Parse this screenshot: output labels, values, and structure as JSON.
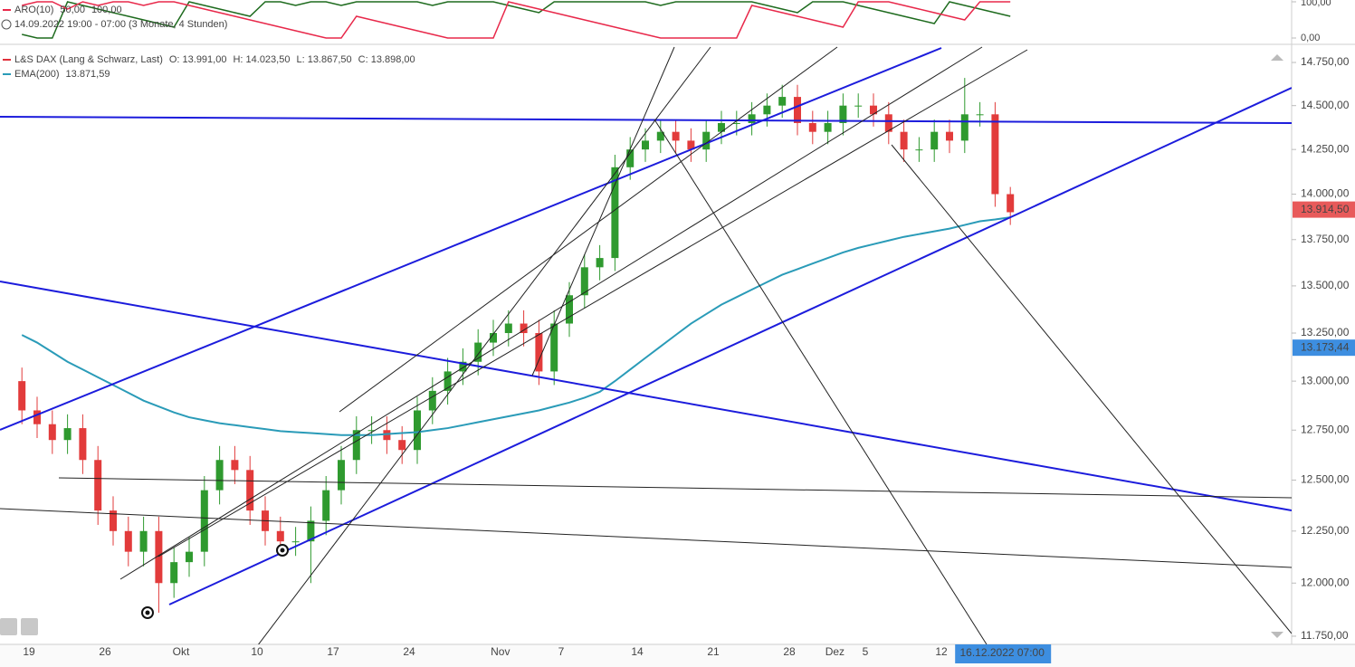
{
  "chart_data": [
    {
      "type": "line",
      "title": "ARO(10)",
      "legend_values": [
        "50,00",
        "100,00"
      ],
      "subtitle": "14.09.2022 19:00 - 07:00  (3 Monate, 4 Stunden)",
      "ylim": [
        0,
        100
      ],
      "yticks": [
        {
          "value": 100,
          "label": "100,00"
        },
        {
          "value": 0,
          "label": "0,00"
        }
      ],
      "series": [
        {
          "color": "#1e6b1e",
          "values": [
            10,
            0,
            0,
            100,
            90,
            80,
            70,
            60,
            50,
            40,
            30,
            100,
            90,
            80,
            70,
            60,
            100,
            100,
            90,
            100,
            100,
            90,
            100,
            100,
            100,
            100,
            100,
            90,
            100,
            100,
            100,
            100,
            90,
            80,
            70,
            100,
            100,
            100,
            100,
            100,
            100,
            100,
            90,
            100,
            100,
            100,
            100,
            100,
            100,
            90,
            80,
            70,
            100,
            100,
            100,
            90,
            80,
            70,
            60,
            50,
            40,
            100,
            90,
            80,
            70,
            60
          ]
        },
        {
          "color": "#e8284a",
          "values": [
            90,
            100,
            100,
            80,
            100,
            90,
            100,
            100,
            90,
            100,
            100,
            90,
            80,
            70,
            60,
            50,
            40,
            30,
            20,
            10,
            0,
            0,
            60,
            50,
            40,
            30,
            20,
            10,
            0,
            0,
            0,
            0,
            100,
            90,
            80,
            70,
            60,
            50,
            40,
            30,
            20,
            10,
            0,
            0,
            0,
            0,
            0,
            0,
            90,
            80,
            70,
            60,
            50,
            40,
            30,
            100,
            100,
            100,
            90,
            80,
            70,
            60,
            50,
            100,
            100,
            100
          ]
        }
      ]
    },
    {
      "type": "candlestick",
      "log_scale": true,
      "legend_values": [
        "O: 13.991,00",
        "H: 14.023,50",
        "L: 13.867,50",
        "C: 13.898,00"
      ],
      "cursor_label": "16.12.2022 07:00",
      "up_color": "#2f9a2f",
      "down_color": "#e23b3b",
      "categories": [
        null,
        "19",
        null,
        null,
        null,
        null,
        "26",
        null,
        null,
        null,
        null,
        "Okt",
        null,
        null,
        null,
        null,
        "10",
        null,
        null,
        null,
        null,
        "17",
        null,
        null,
        null,
        null,
        "24",
        null,
        null,
        null,
        null,
        null,
        "Nov",
        null,
        null,
        null,
        "7",
        null,
        null,
        null,
        null,
        "14",
        null,
        null,
        null,
        null,
        "21",
        null,
        null,
        null,
        null,
        "28",
        null,
        null,
        "Dez",
        null,
        "5",
        null,
        null,
        null,
        null,
        "12",
        null,
        null,
        null,
        null
      ],
      "ylim": [
        11712,
        14851
      ],
      "yticks": [
        {
          "value": 14750,
          "label": "14.750,00"
        },
        {
          "value": 14500,
          "label": "14.500,00"
        },
        {
          "value": 14250,
          "label": "14.250,00"
        },
        {
          "value": 14000,
          "label": "14.000,00"
        },
        {
          "value": 13750,
          "label": "13.750,00"
        },
        {
          "value": 13500,
          "label": "13.500,00"
        },
        {
          "value": 13250,
          "label": "13.250,00"
        },
        {
          "value": 13000,
          "label": "13.000,00"
        },
        {
          "value": 12750,
          "label": "12.750,00"
        },
        {
          "value": 12500,
          "label": "12.500,00"
        },
        {
          "value": 12250,
          "label": "12.250,00"
        },
        {
          "value": 12000,
          "label": "12.000,00"
        },
        {
          "value": 11750,
          "label": "11.750,00"
        }
      ],
      "price_tags": [
        {
          "value": 13914.5,
          "label": "13.914,50",
          "color": "#e85a5a"
        },
        {
          "value": 13173.44,
          "label": "13.173,44",
          "color": "#3d8ee0"
        }
      ],
      "series": [
        {
          "name": "L&S DAX (Lang & Schwarz, Last)",
          "color": "#e0303a",
          "open": [
            13000,
            12850,
            12780,
            12700,
            12760,
            12600,
            12350,
            12250,
            12150,
            12250,
            12000,
            12100,
            12150,
            12450,
            12600,
            12550,
            12350,
            12250,
            12200,
            12200,
            12300,
            12450,
            12600,
            12750,
            12750,
            12700,
            12650,
            12850,
            12950,
            13050,
            13100,
            13200,
            13250,
            13300,
            13250,
            13050,
            13300,
            13450,
            13600,
            13650,
            14150,
            14250,
            14300,
            14350,
            14300,
            14250,
            14350,
            14400,
            14400,
            14450,
            14500,
            14550,
            14400,
            14350,
            14400,
            14500,
            14500,
            14450,
            14350,
            14250,
            14250,
            14350,
            14300,
            14450,
            14450,
            14000
          ],
          "high": [
            13070,
            12920,
            12850,
            12830,
            12830,
            12670,
            12420,
            12320,
            12320,
            12320,
            12170,
            12220,
            12520,
            12670,
            12670,
            12620,
            12420,
            12320,
            12270,
            12370,
            12520,
            12670,
            12820,
            12820,
            12820,
            12770,
            12920,
            13020,
            13120,
            13170,
            13270,
            13320,
            13370,
            13370,
            13320,
            13370,
            13520,
            13670,
            13720,
            14220,
            14320,
            14370,
            14420,
            14420,
            14370,
            14420,
            14470,
            14470,
            14520,
            14570,
            14620,
            14620,
            14470,
            14470,
            14570,
            14570,
            14570,
            14520,
            14420,
            14320,
            14420,
            14420,
            14660,
            14520,
            14520,
            14040
          ],
          "low": [
            12780,
            12710,
            12630,
            12630,
            12530,
            12280,
            12180,
            12080,
            12080,
            11860,
            11930,
            12030,
            12080,
            12380,
            12480,
            12280,
            12180,
            12130,
            12130,
            12000,
            12230,
            12380,
            12530,
            12680,
            12630,
            12580,
            12580,
            12780,
            12880,
            12980,
            13030,
            13130,
            13180,
            13180,
            12980,
            12980,
            13230,
            13380,
            13530,
            13580,
            14080,
            14180,
            14230,
            14230,
            14180,
            14180,
            14280,
            14330,
            14330,
            14380,
            14430,
            14330,
            14280,
            14280,
            14330,
            14430,
            14380,
            14280,
            14180,
            14180,
            14180,
            14230,
            14230,
            14380,
            13930,
            13830
          ],
          "close": [
            12850,
            12780,
            12700,
            12760,
            12600,
            12350,
            12250,
            12150,
            12250,
            12000,
            12100,
            12150,
            12450,
            12600,
            12550,
            12350,
            12250,
            12200,
            12200,
            12300,
            12450,
            12600,
            12750,
            12750,
            12700,
            12650,
            12850,
            12950,
            13050,
            13100,
            13200,
            13250,
            13300,
            13250,
            13050,
            13300,
            13450,
            13600,
            13650,
            14150,
            14250,
            14300,
            14350,
            14300,
            14250,
            14350,
            14400,
            14400,
            14450,
            14500,
            14550,
            14400,
            14350,
            14400,
            14500,
            14500,
            14450,
            14350,
            14250,
            14250,
            14350,
            14300,
            14450,
            14450,
            14000,
            13900
          ]
        },
        {
          "name": "EMA(200)",
          "color": "#2a9bb8",
          "legend_value": "13.871,59",
          "values": [
            13240,
            13200,
            13150,
            13100,
            13060,
            13020,
            12980,
            12940,
            12900,
            12870,
            12840,
            12815,
            12800,
            12785,
            12775,
            12765,
            12755,
            12745,
            12740,
            12735,
            12730,
            12725,
            12725,
            12725,
            12730,
            12735,
            12740,
            12750,
            12760,
            12775,
            12790,
            12805,
            12820,
            12835,
            12850,
            12870,
            12890,
            12915,
            12945,
            13000,
            13060,
            13120,
            13180,
            13240,
            13300,
            13350,
            13400,
            13440,
            13480,
            13520,
            13560,
            13590,
            13620,
            13650,
            13680,
            13705,
            13725,
            13745,
            13765,
            13780,
            13795,
            13810,
            13830,
            13850,
            13860,
            13872
          ]
        }
      ]
    }
  ]
}
